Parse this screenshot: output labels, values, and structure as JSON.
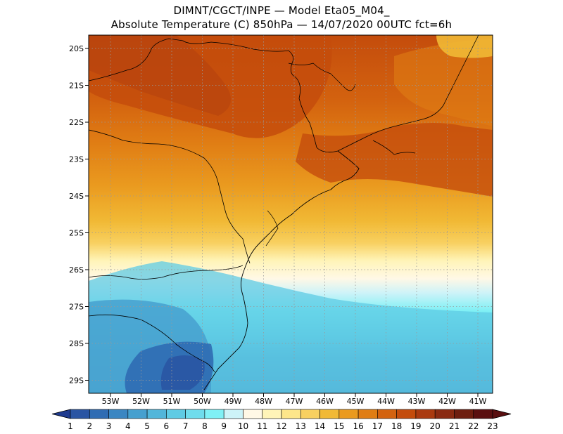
{
  "title": {
    "line1": "DIMNT/CGCT/INPE  —  Model Eta05_M04_",
    "line2": "Absolute Temperature (C) 850hPa  —  14/07/2020 00UTC fct=6h"
  },
  "axes": {
    "lat_labels": [
      "20S",
      "21S",
      "22S",
      "23S",
      "24S",
      "25S",
      "26S",
      "27S",
      "28S",
      "29S"
    ],
    "lon_labels": [
      "53W",
      "52W",
      "51W",
      "50W",
      "49W",
      "48W",
      "47W",
      "46W",
      "45W",
      "44W",
      "43W",
      "42W",
      "41W"
    ]
  },
  "colorbar": {
    "labels": [
      "1",
      "2",
      "3",
      "4",
      "5",
      "6",
      "7",
      "8",
      "9",
      "10",
      "11",
      "12",
      "13",
      "14",
      "15",
      "16",
      "17",
      "18",
      "19",
      "20",
      "21",
      "22",
      "23"
    ],
    "colors": [
      "#1f3b8f",
      "#2a55a3",
      "#2f6cb3",
      "#3a86c2",
      "#46a0cf",
      "#52b6da",
      "#5fcbe4",
      "#6fdcec",
      "#7ff0f5",
      "#cdf3f8",
      "#fff8e6",
      "#fff4b8",
      "#fde68a",
      "#f8d060",
      "#f1b935",
      "#ea9a1f",
      "#e07d14",
      "#d3620f",
      "#c44c0c",
      "#aa3a10",
      "#8a2a12",
      "#6e1e10",
      "#5a0f10"
    ]
  },
  "map": {
    "grid": "dotted",
    "background_gradient": [
      "#c44c0c",
      "#e07d14",
      "#f1b935",
      "#fff4b8",
      "#7ff0f5",
      "#46a0cf",
      "#2f6cb3"
    ]
  }
}
